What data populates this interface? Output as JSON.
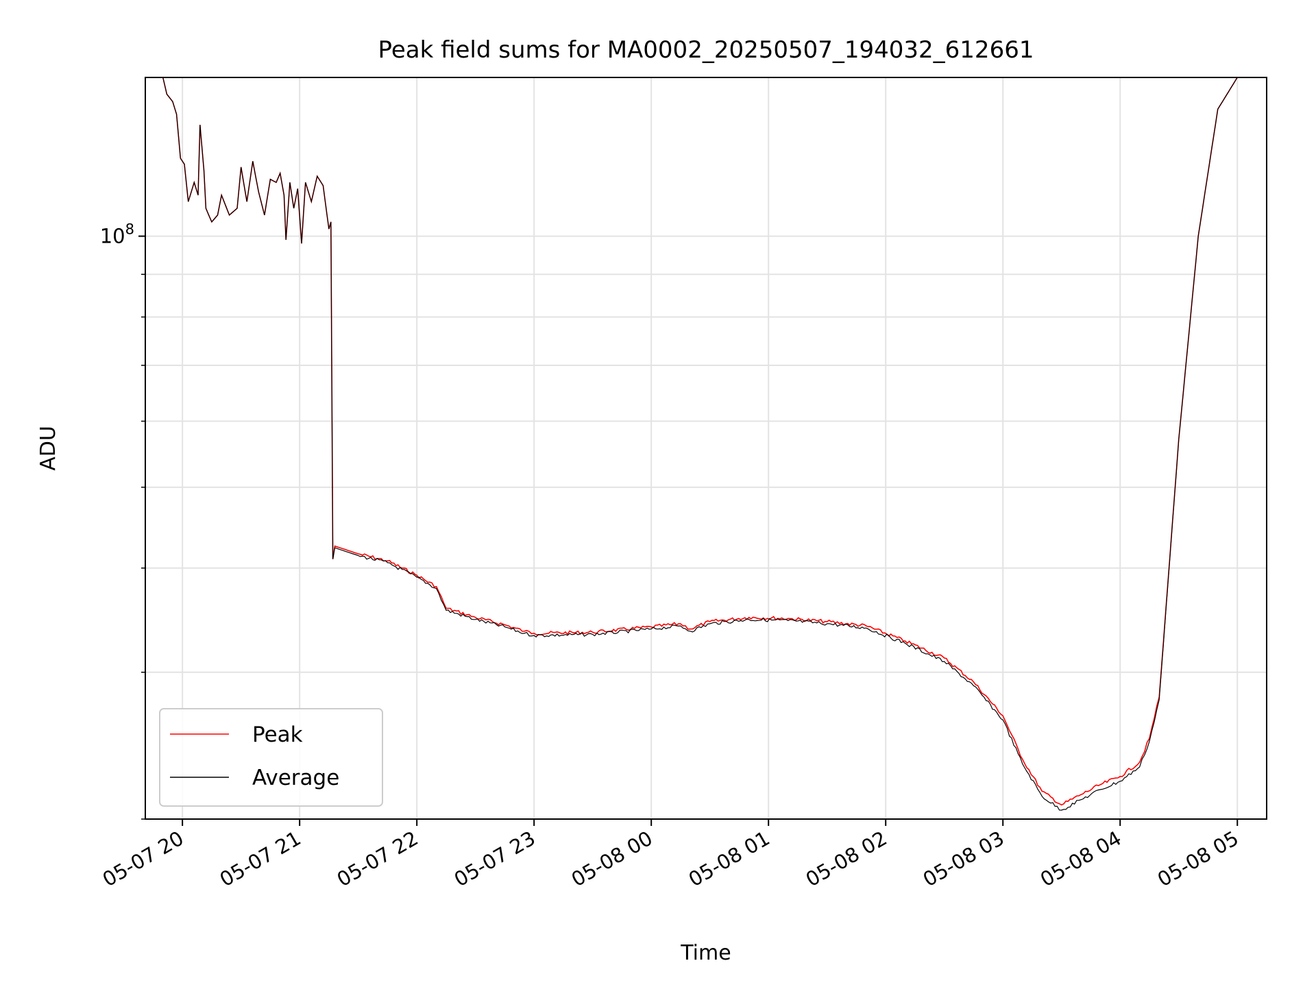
{
  "chart_data": {
    "type": "line",
    "title": "Peak field sums for MA0002_20250507_194032_612661",
    "xlabel": "Time",
    "ylabel": "ADU",
    "y_scale": "log",
    "ylim": [
      20000000,
      155000000
    ],
    "xlim": [
      "2025-05-07 19:41",
      "2025-05-08 05:15"
    ],
    "grid": true,
    "legend_position": "lower-left",
    "x_ticks": [
      {
        "t": "2025-05-07 20:00",
        "label": "05-07 20"
      },
      {
        "t": "2025-05-07 21:00",
        "label": "05-07 21"
      },
      {
        "t": "2025-05-07 22:00",
        "label": "05-07 22"
      },
      {
        "t": "2025-05-07 23:00",
        "label": "05-07 23"
      },
      {
        "t": "2025-05-08 00:00",
        "label": "05-08 00"
      },
      {
        "t": "2025-05-08 01:00",
        "label": "05-08 01"
      },
      {
        "t": "2025-05-08 02:00",
        "label": "05-08 02"
      },
      {
        "t": "2025-05-08 03:00",
        "label": "05-08 03"
      },
      {
        "t": "2025-05-08 04:00",
        "label": "05-08 04"
      },
      {
        "t": "2025-05-08 05:00",
        "label": "05-08 05"
      }
    ],
    "y_major_ticks": [
      {
        "value": 100000000,
        "base": "10",
        "exponent": "8"
      }
    ],
    "y_minor_ticks": [
      20000000,
      30000000,
      40000000,
      50000000,
      60000000,
      70000000,
      80000000,
      90000000,
      200000000
    ],
    "series": [
      {
        "name": "Peak",
        "color": "#ff0000",
        "points": [
          [
            "2025-05-07 19:41",
            155000000
          ],
          [
            "2025-05-07 19:50",
            155000000
          ],
          [
            "2025-05-07 19:52",
            148000000
          ],
          [
            "2025-05-07 19:55",
            145000000
          ],
          [
            "2025-05-07 19:57",
            140000000
          ],
          [
            "2025-05-07 19:59",
            124000000
          ],
          [
            "2025-05-07 20:01",
            122000000
          ],
          [
            "2025-05-07 20:03",
            110000000
          ],
          [
            "2025-05-07 20:06",
            116000000
          ],
          [
            "2025-05-07 20:08",
            112000000
          ],
          [
            "2025-05-07 20:09",
            136000000
          ],
          [
            "2025-05-07 20:11",
            120000000
          ],
          [
            "2025-05-07 20:12",
            108000000
          ],
          [
            "2025-05-07 20:15",
            104000000
          ],
          [
            "2025-05-07 20:18",
            106000000
          ],
          [
            "2025-05-07 20:20",
            112000000
          ],
          [
            "2025-05-07 20:24",
            106000000
          ],
          [
            "2025-05-07 20:28",
            108000000
          ],
          [
            "2025-05-07 20:30",
            121000000
          ],
          [
            "2025-05-07 20:33",
            110000000
          ],
          [
            "2025-05-07 20:36",
            123000000
          ],
          [
            "2025-05-07 20:39",
            113000000
          ],
          [
            "2025-05-07 20:42",
            106000000
          ],
          [
            "2025-05-07 20:45",
            117000000
          ],
          [
            "2025-05-07 20:48",
            116000000
          ],
          [
            "2025-05-07 20:50",
            119000000
          ],
          [
            "2025-05-07 20:52",
            112000000
          ],
          [
            "2025-05-07 20:53",
            99000000
          ],
          [
            "2025-05-07 20:55",
            116000000
          ],
          [
            "2025-05-07 20:57",
            108000000
          ],
          [
            "2025-05-07 20:59",
            114000000
          ],
          [
            "2025-05-07 21:01",
            98000000
          ],
          [
            "2025-05-07 21:03",
            116000000
          ],
          [
            "2025-05-07 21:06",
            110000000
          ],
          [
            "2025-05-07 21:09",
            118000000
          ],
          [
            "2025-05-07 21:12",
            115000000
          ],
          [
            "2025-05-07 21:14",
            106000000
          ],
          [
            "2025-05-07 21:15",
            102000000
          ],
          [
            "2025-05-07 21:16",
            104000000
          ],
          [
            "2025-05-07 21:17",
            41000000
          ],
          [
            "2025-05-07 21:18",
            42500000
          ],
          [
            "2025-05-07 21:30",
            41600000
          ],
          [
            "2025-05-07 21:45",
            40800000
          ],
          [
            "2025-05-07 22:00",
            39200000
          ],
          [
            "2025-05-07 22:10",
            38000000
          ],
          [
            "2025-05-07 22:15",
            35800000
          ],
          [
            "2025-05-07 22:30",
            34900000
          ],
          [
            "2025-05-07 22:45",
            34200000
          ],
          [
            "2025-05-07 22:55",
            33600000
          ],
          [
            "2025-05-07 23:00",
            33400000
          ],
          [
            "2025-05-07 23:30",
            33500000
          ],
          [
            "2025-05-08 00:00",
            34000000
          ],
          [
            "2025-05-08 00:15",
            34300000
          ],
          [
            "2025-05-08 00:20",
            33800000
          ],
          [
            "2025-05-08 00:30",
            34500000
          ],
          [
            "2025-05-08 00:50",
            34900000
          ],
          [
            "2025-05-08 01:10",
            34800000
          ],
          [
            "2025-05-08 01:30",
            34500000
          ],
          [
            "2025-05-08 01:50",
            34100000
          ],
          [
            "2025-05-08 02:10",
            32700000
          ],
          [
            "2025-05-08 02:30",
            31200000
          ],
          [
            "2025-05-08 02:45",
            29200000
          ],
          [
            "2025-05-08 03:00",
            26600000
          ],
          [
            "2025-05-08 03:10",
            23600000
          ],
          [
            "2025-05-08 03:20",
            21600000
          ],
          [
            "2025-05-08 03:30",
            20800000
          ],
          [
            "2025-05-08 03:40",
            21400000
          ],
          [
            "2025-05-08 03:50",
            22000000
          ],
          [
            "2025-05-08 04:00",
            22500000
          ],
          [
            "2025-05-08 04:10",
            23400000
          ],
          [
            "2025-05-08 04:15",
            25000000
          ],
          [
            "2025-05-08 04:20",
            28000000
          ],
          [
            "2025-05-08 04:30",
            57000000
          ],
          [
            "2025-05-08 04:40",
            100000000
          ],
          [
            "2025-05-08 04:50",
            142000000
          ],
          [
            "2025-05-08 05:00",
            155000000
          ]
        ]
      },
      {
        "name": "Average",
        "color": "#000000",
        "points": [
          [
            "2025-05-07 19:41",
            155000000
          ],
          [
            "2025-05-07 19:50",
            155000000
          ],
          [
            "2025-05-07 19:52",
            148000000
          ],
          [
            "2025-05-07 19:55",
            145000000
          ],
          [
            "2025-05-07 19:57",
            140000000
          ],
          [
            "2025-05-07 19:59",
            124000000
          ],
          [
            "2025-05-07 20:01",
            122000000
          ],
          [
            "2025-05-07 20:03",
            110000000
          ],
          [
            "2025-05-07 20:06",
            116000000
          ],
          [
            "2025-05-07 20:08",
            112000000
          ],
          [
            "2025-05-07 20:09",
            136000000
          ],
          [
            "2025-05-07 20:11",
            120000000
          ],
          [
            "2025-05-07 20:12",
            108000000
          ],
          [
            "2025-05-07 20:15",
            104000000
          ],
          [
            "2025-05-07 20:18",
            106000000
          ],
          [
            "2025-05-07 20:20",
            112000000
          ],
          [
            "2025-05-07 20:24",
            106000000
          ],
          [
            "2025-05-07 20:28",
            108000000
          ],
          [
            "2025-05-07 20:30",
            121000000
          ],
          [
            "2025-05-07 20:33",
            110000000
          ],
          [
            "2025-05-07 20:36",
            123000000
          ],
          [
            "2025-05-07 20:39",
            113000000
          ],
          [
            "2025-05-07 20:42",
            106000000
          ],
          [
            "2025-05-07 20:45",
            117000000
          ],
          [
            "2025-05-07 20:48",
            116000000
          ],
          [
            "2025-05-07 20:50",
            119000000
          ],
          [
            "2025-05-07 20:52",
            112000000
          ],
          [
            "2025-05-07 20:53",
            99000000
          ],
          [
            "2025-05-07 20:55",
            116000000
          ],
          [
            "2025-05-07 20:57",
            108000000
          ],
          [
            "2025-05-07 20:59",
            114000000
          ],
          [
            "2025-05-07 21:01",
            98000000
          ],
          [
            "2025-05-07 21:03",
            116000000
          ],
          [
            "2025-05-07 21:06",
            110000000
          ],
          [
            "2025-05-07 21:09",
            118000000
          ],
          [
            "2025-05-07 21:12",
            115000000
          ],
          [
            "2025-05-07 21:14",
            106000000
          ],
          [
            "2025-05-07 21:15",
            102000000
          ],
          [
            "2025-05-07 21:16",
            104000000
          ],
          [
            "2025-05-07 21:17",
            41000000
          ],
          [
            "2025-05-07 21:18",
            42300000
          ],
          [
            "2025-05-07 21:30",
            41400000
          ],
          [
            "2025-05-07 21:45",
            40600000
          ],
          [
            "2025-05-07 22:00",
            39000000
          ],
          [
            "2025-05-07 22:10",
            37800000
          ],
          [
            "2025-05-07 22:15",
            35600000
          ],
          [
            "2025-05-07 22:30",
            34700000
          ],
          [
            "2025-05-07 22:45",
            34000000
          ],
          [
            "2025-05-07 22:55",
            33400000
          ],
          [
            "2025-05-07 23:00",
            33200000
          ],
          [
            "2025-05-07 23:30",
            33300000
          ],
          [
            "2025-05-08 00:00",
            33800000
          ],
          [
            "2025-05-08 00:15",
            34100000
          ],
          [
            "2025-05-08 00:20",
            33600000
          ],
          [
            "2025-05-08 00:30",
            34300000
          ],
          [
            "2025-05-08 00:50",
            34700000
          ],
          [
            "2025-05-08 01:10",
            34600000
          ],
          [
            "2025-05-08 01:30",
            34300000
          ],
          [
            "2025-05-08 01:50",
            33900000
          ],
          [
            "2025-05-08 02:10",
            32500000
          ],
          [
            "2025-05-08 02:30",
            30900000
          ],
          [
            "2025-05-08 02:45",
            28900000
          ],
          [
            "2025-05-08 03:00",
            26300000
          ],
          [
            "2025-05-08 03:10",
            23300000
          ],
          [
            "2025-05-08 03:20",
            21300000
          ],
          [
            "2025-05-08 03:30",
            20500000
          ],
          [
            "2025-05-08 03:40",
            21100000
          ],
          [
            "2025-05-08 03:50",
            21700000
          ],
          [
            "2025-05-08 04:00",
            22200000
          ],
          [
            "2025-05-08 04:10",
            23100000
          ],
          [
            "2025-05-08 04:15",
            24800000
          ],
          [
            "2025-05-08 04:20",
            27800000
          ],
          [
            "2025-05-08 04:30",
            57000000
          ],
          [
            "2025-05-08 04:40",
            100000000
          ],
          [
            "2025-05-08 04:50",
            142000000
          ],
          [
            "2025-05-08 05:00",
            155000000
          ]
        ]
      }
    ]
  }
}
